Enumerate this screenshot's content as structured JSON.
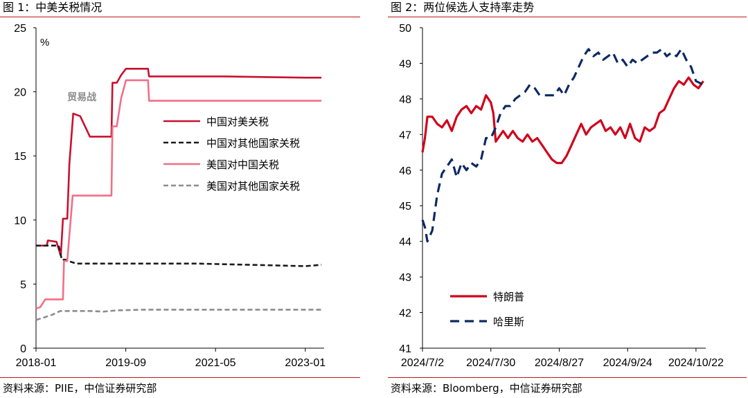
{
  "colors": {
    "rule": "#c0121b",
    "china_on_us": "#c8102e",
    "china_on_others": "#1a1a1a",
    "us_on_china": "#f06f86",
    "us_on_others": "#8c8c8c",
    "trump": "#d0021b",
    "harris": "#0d2a62"
  },
  "left": {
    "title": "图 1：中美关税情况",
    "source": "资料来源：PIIE，中信证券研究部"
  },
  "right": {
    "title": "图 2：两位候选人支持率走势",
    "source": "资料来源：Bloomberg，中信证券研究部"
  },
  "chart_data": [
    {
      "type": "line",
      "ylabel": "%",
      "ylim": [
        0,
        25
      ],
      "yticks": [
        "0",
        "5",
        "10",
        "15",
        "20",
        "25"
      ],
      "xlim": [
        2018.0,
        2023.35
      ],
      "xticks": [
        {
          "x": 2018.0,
          "label": "2018-01"
        },
        {
          "x": 2019.667,
          "label": "2019-09"
        },
        {
          "x": 2021.333,
          "label": "2021-05"
        },
        {
          "x": 2023.0,
          "label": "2023-01"
        }
      ],
      "annotation": {
        "text": "贸易战",
        "x": 2018.85,
        "y": 19.6
      },
      "legend_position": "center-right",
      "series": [
        {
          "name": "中国对美关税",
          "style": "solid",
          "points": [
            [
              2018.0,
              8.0
            ],
            [
              2018.2,
              8.0
            ],
            [
              2018.22,
              8.4
            ],
            [
              2018.38,
              8.3
            ],
            [
              2018.46,
              7.2
            ],
            [
              2018.5,
              10.1
            ],
            [
              2018.58,
              10.1
            ],
            [
              2018.62,
              14.4
            ],
            [
              2018.69,
              18.3
            ],
            [
              2018.82,
              18.1
            ],
            [
              2019.0,
              16.5
            ],
            [
              2019.4,
              16.5
            ],
            [
              2019.42,
              20.7
            ],
            [
              2019.5,
              20.7
            ],
            [
              2019.58,
              21.3
            ],
            [
              2019.67,
              21.8
            ],
            [
              2019.8,
              21.8
            ],
            [
              2020.08,
              21.8
            ],
            [
              2020.1,
              21.2
            ],
            [
              2021.5,
              21.2
            ],
            [
              2023.0,
              21.1
            ],
            [
              2023.3,
              21.1
            ]
          ]
        },
        {
          "name": "中国对其他国家关税",
          "style": "dash",
          "points": [
            [
              2018.0,
              8.0
            ],
            [
              2018.42,
              8.0
            ],
            [
              2018.48,
              6.9
            ],
            [
              2018.55,
              6.9
            ],
            [
              2018.6,
              6.8
            ],
            [
              2018.75,
              6.6
            ],
            [
              2019.5,
              6.6
            ],
            [
              2021.0,
              6.6
            ],
            [
              2023.0,
              6.4
            ],
            [
              2023.3,
              6.5
            ]
          ]
        },
        {
          "name": "美国对中国关税",
          "style": "solid",
          "points": [
            [
              2018.0,
              3.1
            ],
            [
              2018.08,
              3.2
            ],
            [
              2018.17,
              3.8
            ],
            [
              2018.5,
              3.8
            ],
            [
              2018.52,
              6.8
            ],
            [
              2018.58,
              6.8
            ],
            [
              2018.68,
              11.9
            ],
            [
              2019.4,
              11.9
            ],
            [
              2019.42,
              17.3
            ],
            [
              2019.5,
              17.3
            ],
            [
              2019.58,
              19.5
            ],
            [
              2019.67,
              20.9
            ],
            [
              2020.08,
              20.9
            ],
            [
              2020.1,
              19.3
            ],
            [
              2021.0,
              19.3
            ],
            [
              2023.3,
              19.3
            ]
          ]
        },
        {
          "name": "美国对其他国家关税",
          "style": "dash",
          "points": [
            [
              2018.0,
              2.2
            ],
            [
              2018.15,
              2.4
            ],
            [
              2018.3,
              2.6
            ],
            [
              2018.45,
              2.9
            ],
            [
              2019.0,
              2.9
            ],
            [
              2019.25,
              2.85
            ],
            [
              2019.5,
              2.95
            ],
            [
              2020.0,
              3.0
            ],
            [
              2021.0,
              3.0
            ],
            [
              2023.3,
              3.0
            ]
          ]
        }
      ]
    },
    {
      "type": "line",
      "ylim": [
        41,
        50
      ],
      "yticks": [
        "41",
        "42",
        "43",
        "44",
        "45",
        "46",
        "47",
        "48",
        "49",
        "50"
      ],
      "xlim": [
        "2024-07-02",
        "2024-10-26"
      ],
      "xticks": [
        "2024/7/2",
        "2024/7/30",
        "2024/8/27",
        "2024/9/24",
        "2024/10/22"
      ],
      "legend_position": "bottom-left",
      "series": [
        {
          "name": "特朗普",
          "style": "solid",
          "points": [
            [
              "2024-07-02",
              46.5
            ],
            [
              "2024-07-03",
              46.9
            ],
            [
              "2024-07-04",
              47.5
            ],
            [
              "2024-07-06",
              47.5
            ],
            [
              "2024-07-08",
              47.3
            ],
            [
              "2024-07-10",
              47.2
            ],
            [
              "2024-07-12",
              47.4
            ],
            [
              "2024-07-14",
              47.1
            ],
            [
              "2024-07-16",
              47.5
            ],
            [
              "2024-07-18",
              47.7
            ],
            [
              "2024-07-20",
              47.8
            ],
            [
              "2024-07-22",
              47.6
            ],
            [
              "2024-07-24",
              47.8
            ],
            [
              "2024-07-26",
              47.7
            ],
            [
              "2024-07-28",
              48.1
            ],
            [
              "2024-07-30",
              47.9
            ],
            [
              "2024-07-31",
              47.6
            ],
            [
              "2024-08-01",
              46.8
            ],
            [
              "2024-08-04",
              47.1
            ],
            [
              "2024-08-06",
              46.9
            ],
            [
              "2024-08-08",
              47.1
            ],
            [
              "2024-08-10",
              46.9
            ],
            [
              "2024-08-12",
              46.8
            ],
            [
              "2024-08-14",
              47.0
            ],
            [
              "2024-08-16",
              46.8
            ],
            [
              "2024-08-18",
              46.9
            ],
            [
              "2024-08-20",
              46.7
            ],
            [
              "2024-08-22",
              46.5
            ],
            [
              "2024-08-24",
              46.3
            ],
            [
              "2024-08-26",
              46.2
            ],
            [
              "2024-08-28",
              46.2
            ],
            [
              "2024-08-30",
              46.4
            ],
            [
              "2024-09-01",
              46.7
            ],
            [
              "2024-09-03",
              47.0
            ],
            [
              "2024-09-05",
              47.3
            ],
            [
              "2024-09-07",
              47.0
            ],
            [
              "2024-09-09",
              47.2
            ],
            [
              "2024-09-11",
              47.3
            ],
            [
              "2024-09-13",
              47.4
            ],
            [
              "2024-09-15",
              47.1
            ],
            [
              "2024-09-17",
              47.2
            ],
            [
              "2024-09-19",
              47.0
            ],
            [
              "2024-09-21",
              47.2
            ],
            [
              "2024-09-23",
              46.9
            ],
            [
              "2024-09-25",
              47.3
            ],
            [
              "2024-09-27",
              46.9
            ],
            [
              "2024-09-29",
              46.8
            ],
            [
              "2024-10-01",
              47.2
            ],
            [
              "2024-10-03",
              47.1
            ],
            [
              "2024-10-05",
              47.2
            ],
            [
              "2024-10-07",
              47.6
            ],
            [
              "2024-10-09",
              47.7
            ],
            [
              "2024-10-11",
              48.0
            ],
            [
              "2024-10-13",
              48.3
            ],
            [
              "2024-10-15",
              48.5
            ],
            [
              "2024-10-17",
              48.4
            ],
            [
              "2024-10-19",
              48.6
            ],
            [
              "2024-10-21",
              48.4
            ],
            [
              "2024-10-23",
              48.3
            ],
            [
              "2024-10-25",
              48.5
            ]
          ]
        },
        {
          "name": "哈里斯",
          "style": "dash",
          "points": [
            [
              "2024-07-02",
              44.6
            ],
            [
              "2024-07-03",
              44.4
            ],
            [
              "2024-07-04",
              44.0
            ],
            [
              "2024-07-06",
              44.3
            ],
            [
              "2024-07-08",
              45.3
            ],
            [
              "2024-07-10",
              45.9
            ],
            [
              "2024-07-12",
              46.1
            ],
            [
              "2024-07-14",
              46.3
            ],
            [
              "2024-07-16",
              45.8
            ],
            [
              "2024-07-18",
              46.2
            ],
            [
              "2024-07-20",
              46.0
            ],
            [
              "2024-07-22",
              46.2
            ],
            [
              "2024-07-24",
              46.1
            ],
            [
              "2024-07-26",
              46.3
            ],
            [
              "2024-07-28",
              46.9
            ],
            [
              "2024-07-30",
              46.9
            ],
            [
              "2024-08-01",
              47.2
            ],
            [
              "2024-08-03",
              47.6
            ],
            [
              "2024-08-05",
              47.8
            ],
            [
              "2024-08-07",
              47.8
            ],
            [
              "2024-08-09",
              48.0
            ],
            [
              "2024-08-11",
              48.1
            ],
            [
              "2024-08-13",
              48.2
            ],
            [
              "2024-08-15",
              48.4
            ],
            [
              "2024-08-17",
              48.3
            ],
            [
              "2024-08-19",
              48.1
            ],
            [
              "2024-08-21",
              48.1
            ],
            [
              "2024-08-23",
              48.1
            ],
            [
              "2024-08-25",
              48.1
            ],
            [
              "2024-08-27",
              48.3
            ],
            [
              "2024-08-29",
              48.1
            ],
            [
              "2024-08-31",
              48.4
            ],
            [
              "2024-09-02",
              48.6
            ],
            [
              "2024-09-04",
              48.9
            ],
            [
              "2024-09-06",
              49.2
            ],
            [
              "2024-09-08",
              49.4
            ],
            [
              "2024-09-10",
              49.2
            ],
            [
              "2024-09-12",
              49.3
            ],
            [
              "2024-09-14",
              49.1
            ],
            [
              "2024-09-16",
              49.2
            ],
            [
              "2024-09-18",
              49.3
            ],
            [
              "2024-09-20",
              49.0
            ],
            [
              "2024-09-22",
              49.1
            ],
            [
              "2024-09-24",
              48.9
            ],
            [
              "2024-09-26",
              49.1
            ],
            [
              "2024-09-28",
              49.0
            ],
            [
              "2024-09-30",
              49.1
            ],
            [
              "2024-10-02",
              49.2
            ],
            [
              "2024-10-04",
              49.3
            ],
            [
              "2024-10-06",
              49.3
            ],
            [
              "2024-10-08",
              49.4
            ],
            [
              "2024-10-10",
              49.2
            ],
            [
              "2024-10-12",
              49.3
            ],
            [
              "2024-10-14",
              49.2
            ],
            [
              "2024-10-16",
              49.4
            ],
            [
              "2024-10-18",
              49.1
            ],
            [
              "2024-10-20",
              48.9
            ],
            [
              "2024-10-22",
              48.5
            ],
            [
              "2024-10-25",
              48.4
            ]
          ]
        }
      ]
    }
  ]
}
